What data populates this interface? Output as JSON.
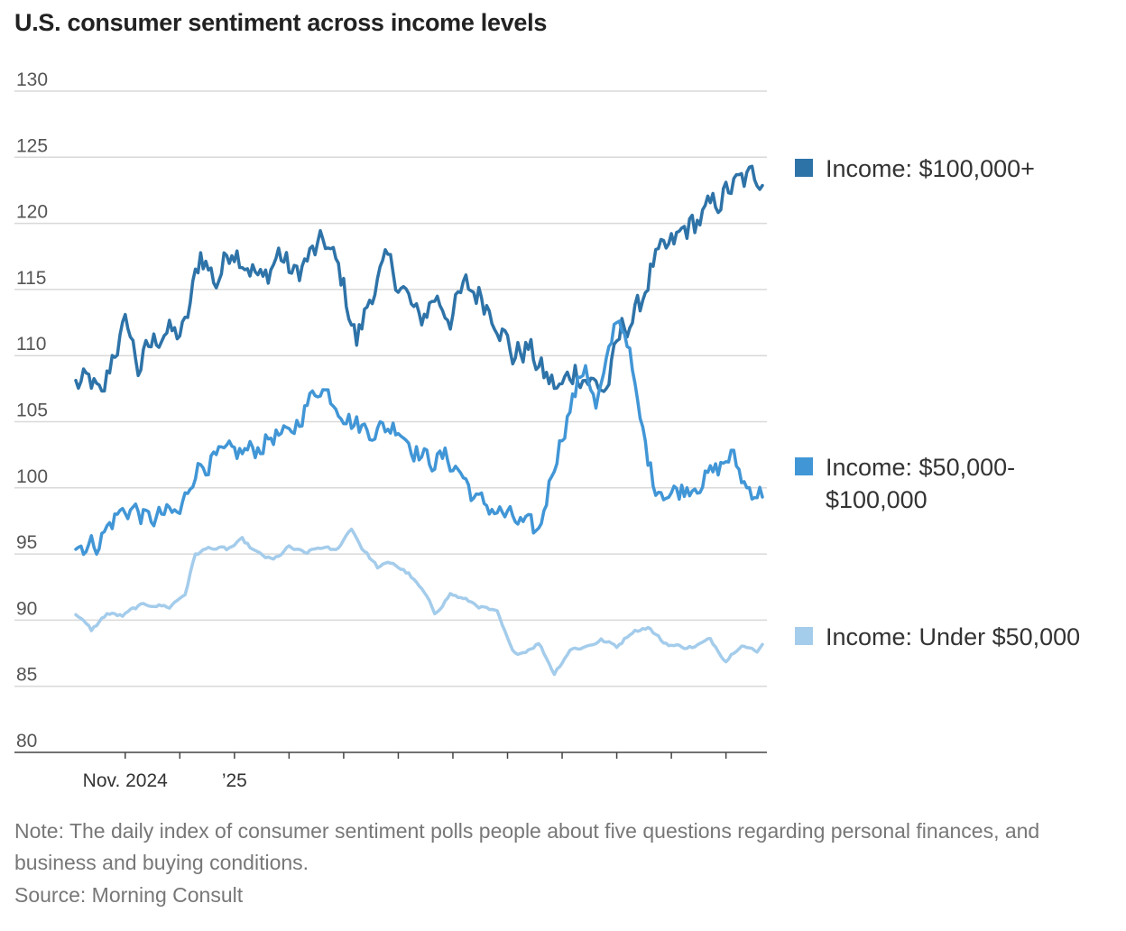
{
  "chart_data": {
    "type": "line",
    "title": "U.S. consumer sentiment across income levels",
    "xlabel": "",
    "ylabel": "",
    "ylim": [
      80,
      130
    ],
    "yticks": [
      80,
      85,
      90,
      95,
      100,
      105,
      110,
      115,
      120,
      125,
      130
    ],
    "x_tick_labels": [
      {
        "label": "Nov. 2024",
        "index": 19
      },
      {
        "label": "’25",
        "index": 61
      }
    ],
    "x_minor_tick_indices": [
      19,
      40,
      61,
      82,
      103,
      124,
      145,
      166,
      187,
      208,
      229,
      250
    ],
    "x_count": 264,
    "series": [
      {
        "name": "Income: $100,000+",
        "legend_label": "Income: $100,000+",
        "color": "#2e73a8",
        "keypoints": [
          [
            0,
            107.8
          ],
          [
            6,
            108
          ],
          [
            10,
            106.5
          ],
          [
            14,
            110
          ],
          [
            20,
            112.5
          ],
          [
            24,
            109
          ],
          [
            28,
            110.5
          ],
          [
            34,
            112
          ],
          [
            38,
            111.5
          ],
          [
            42,
            112
          ],
          [
            48,
            117.8
          ],
          [
            54,
            115.5
          ],
          [
            60,
            118.4
          ],
          [
            66,
            117
          ],
          [
            72,
            115.5
          ],
          [
            78,
            117.8
          ],
          [
            84,
            116
          ],
          [
            90,
            117.5
          ],
          [
            96,
            118.6
          ],
          [
            102,
            116
          ],
          [
            108,
            111
          ],
          [
            114,
            115
          ],
          [
            120,
            117
          ],
          [
            126,
            115
          ],
          [
            132,
            112.5
          ],
          [
            138,
            114.5
          ],
          [
            144,
            113
          ],
          [
            150,
            115.2
          ],
          [
            156,
            114.5
          ],
          [
            162,
            112.8
          ],
          [
            168,
            110
          ],
          [
            174,
            110.6
          ],
          [
            180,
            108.5
          ],
          [
            186,
            107.4
          ],
          [
            192,
            109
          ],
          [
            198,
            108
          ],
          [
            204,
            107.4
          ],
          [
            210,
            112
          ],
          [
            216,
            113.3
          ],
          [
            222,
            117
          ],
          [
            228,
            118
          ],
          [
            234,
            119.5
          ],
          [
            240,
            120.3
          ],
          [
            246,
            121.5
          ],
          [
            252,
            122.7
          ],
          [
            258,
            123.3
          ],
          [
            264,
            123.8
          ]
        ]
      },
      {
        "name": "Income: $50,000-$100,000",
        "legend_label_line1": "Income: $50,000-",
        "legend_label_line2": "$100,000",
        "color": "#4196d6",
        "keypoints": [
          [
            0,
            95.6
          ],
          [
            8,
            95.8
          ],
          [
            16,
            98
          ],
          [
            22,
            98.5
          ],
          [
            28,
            97.5
          ],
          [
            34,
            98
          ],
          [
            40,
            98
          ],
          [
            46,
            101.5
          ],
          [
            52,
            102
          ],
          [
            58,
            102.5
          ],
          [
            64,
            102.7
          ],
          [
            70,
            103
          ],
          [
            76,
            104
          ],
          [
            82,
            103.8
          ],
          [
            88,
            106
          ],
          [
            94,
            107.8
          ],
          [
            100,
            106.5
          ],
          [
            106,
            105
          ],
          [
            112,
            104.4
          ],
          [
            118,
            104.5
          ],
          [
            124,
            104.7
          ],
          [
            130,
            103
          ],
          [
            136,
            102
          ],
          [
            142,
            102.3
          ],
          [
            148,
            101.2
          ],
          [
            154,
            99
          ],
          [
            160,
            98.5
          ],
          [
            166,
            97.8
          ],
          [
            172,
            97.2
          ],
          [
            178,
            96.6
          ],
          [
            184,
            102
          ],
          [
            190,
            106
          ],
          [
            196,
            109.5
          ],
          [
            200,
            106
          ],
          [
            204,
            109
          ],
          [
            208,
            113
          ],
          [
            212,
            111.5
          ],
          [
            216,
            106
          ],
          [
            222,
            100.5
          ],
          [
            228,
            99.5
          ],
          [
            234,
            100
          ],
          [
            240,
            100.5
          ],
          [
            246,
            101.2
          ],
          [
            252,
            102.5
          ],
          [
            258,
            100
          ],
          [
            264,
            99.6
          ]
        ]
      },
      {
        "name": "Income: Under $50,000",
        "legend_label": "Income: Under $50,000",
        "color": "#a4cceb",
        "keypoints": [
          [
            0,
            90.5
          ],
          [
            6,
            89.2
          ],
          [
            12,
            90.5
          ],
          [
            18,
            90.3
          ],
          [
            24,
            91
          ],
          [
            30,
            91.2
          ],
          [
            36,
            91
          ],
          [
            42,
            92
          ],
          [
            46,
            95
          ],
          [
            52,
            95.5
          ],
          [
            58,
            95.3
          ],
          [
            64,
            96
          ],
          [
            70,
            95
          ],
          [
            76,
            94.5
          ],
          [
            82,
            95.5
          ],
          [
            88,
            95
          ],
          [
            94,
            95.5
          ],
          [
            100,
            95.2
          ],
          [
            106,
            97
          ],
          [
            110,
            95.5
          ],
          [
            116,
            94
          ],
          [
            122,
            94.3
          ],
          [
            128,
            93.5
          ],
          [
            134,
            92
          ],
          [
            138,
            90.5
          ],
          [
            144,
            92
          ],
          [
            150,
            91.5
          ],
          [
            156,
            91
          ],
          [
            162,
            90.5
          ],
          [
            168,
            87.5
          ],
          [
            172,
            87.6
          ],
          [
            178,
            88.3
          ],
          [
            184,
            86
          ],
          [
            190,
            87.8
          ],
          [
            196,
            88
          ],
          [
            202,
            88.5
          ],
          [
            208,
            88
          ],
          [
            214,
            89.2
          ],
          [
            220,
            89.5
          ],
          [
            226,
            88.3
          ],
          [
            232,
            88
          ],
          [
            238,
            88
          ],
          [
            244,
            88.5
          ],
          [
            250,
            87
          ],
          [
            256,
            88.3
          ],
          [
            262,
            87.5
          ],
          [
            264,
            88.3
          ]
        ]
      }
    ],
    "note": "Note: The daily index of consumer sentiment polls people about five questions regarding personal finances, and business and buying conditions.",
    "source": "Source: Morning Consult"
  }
}
